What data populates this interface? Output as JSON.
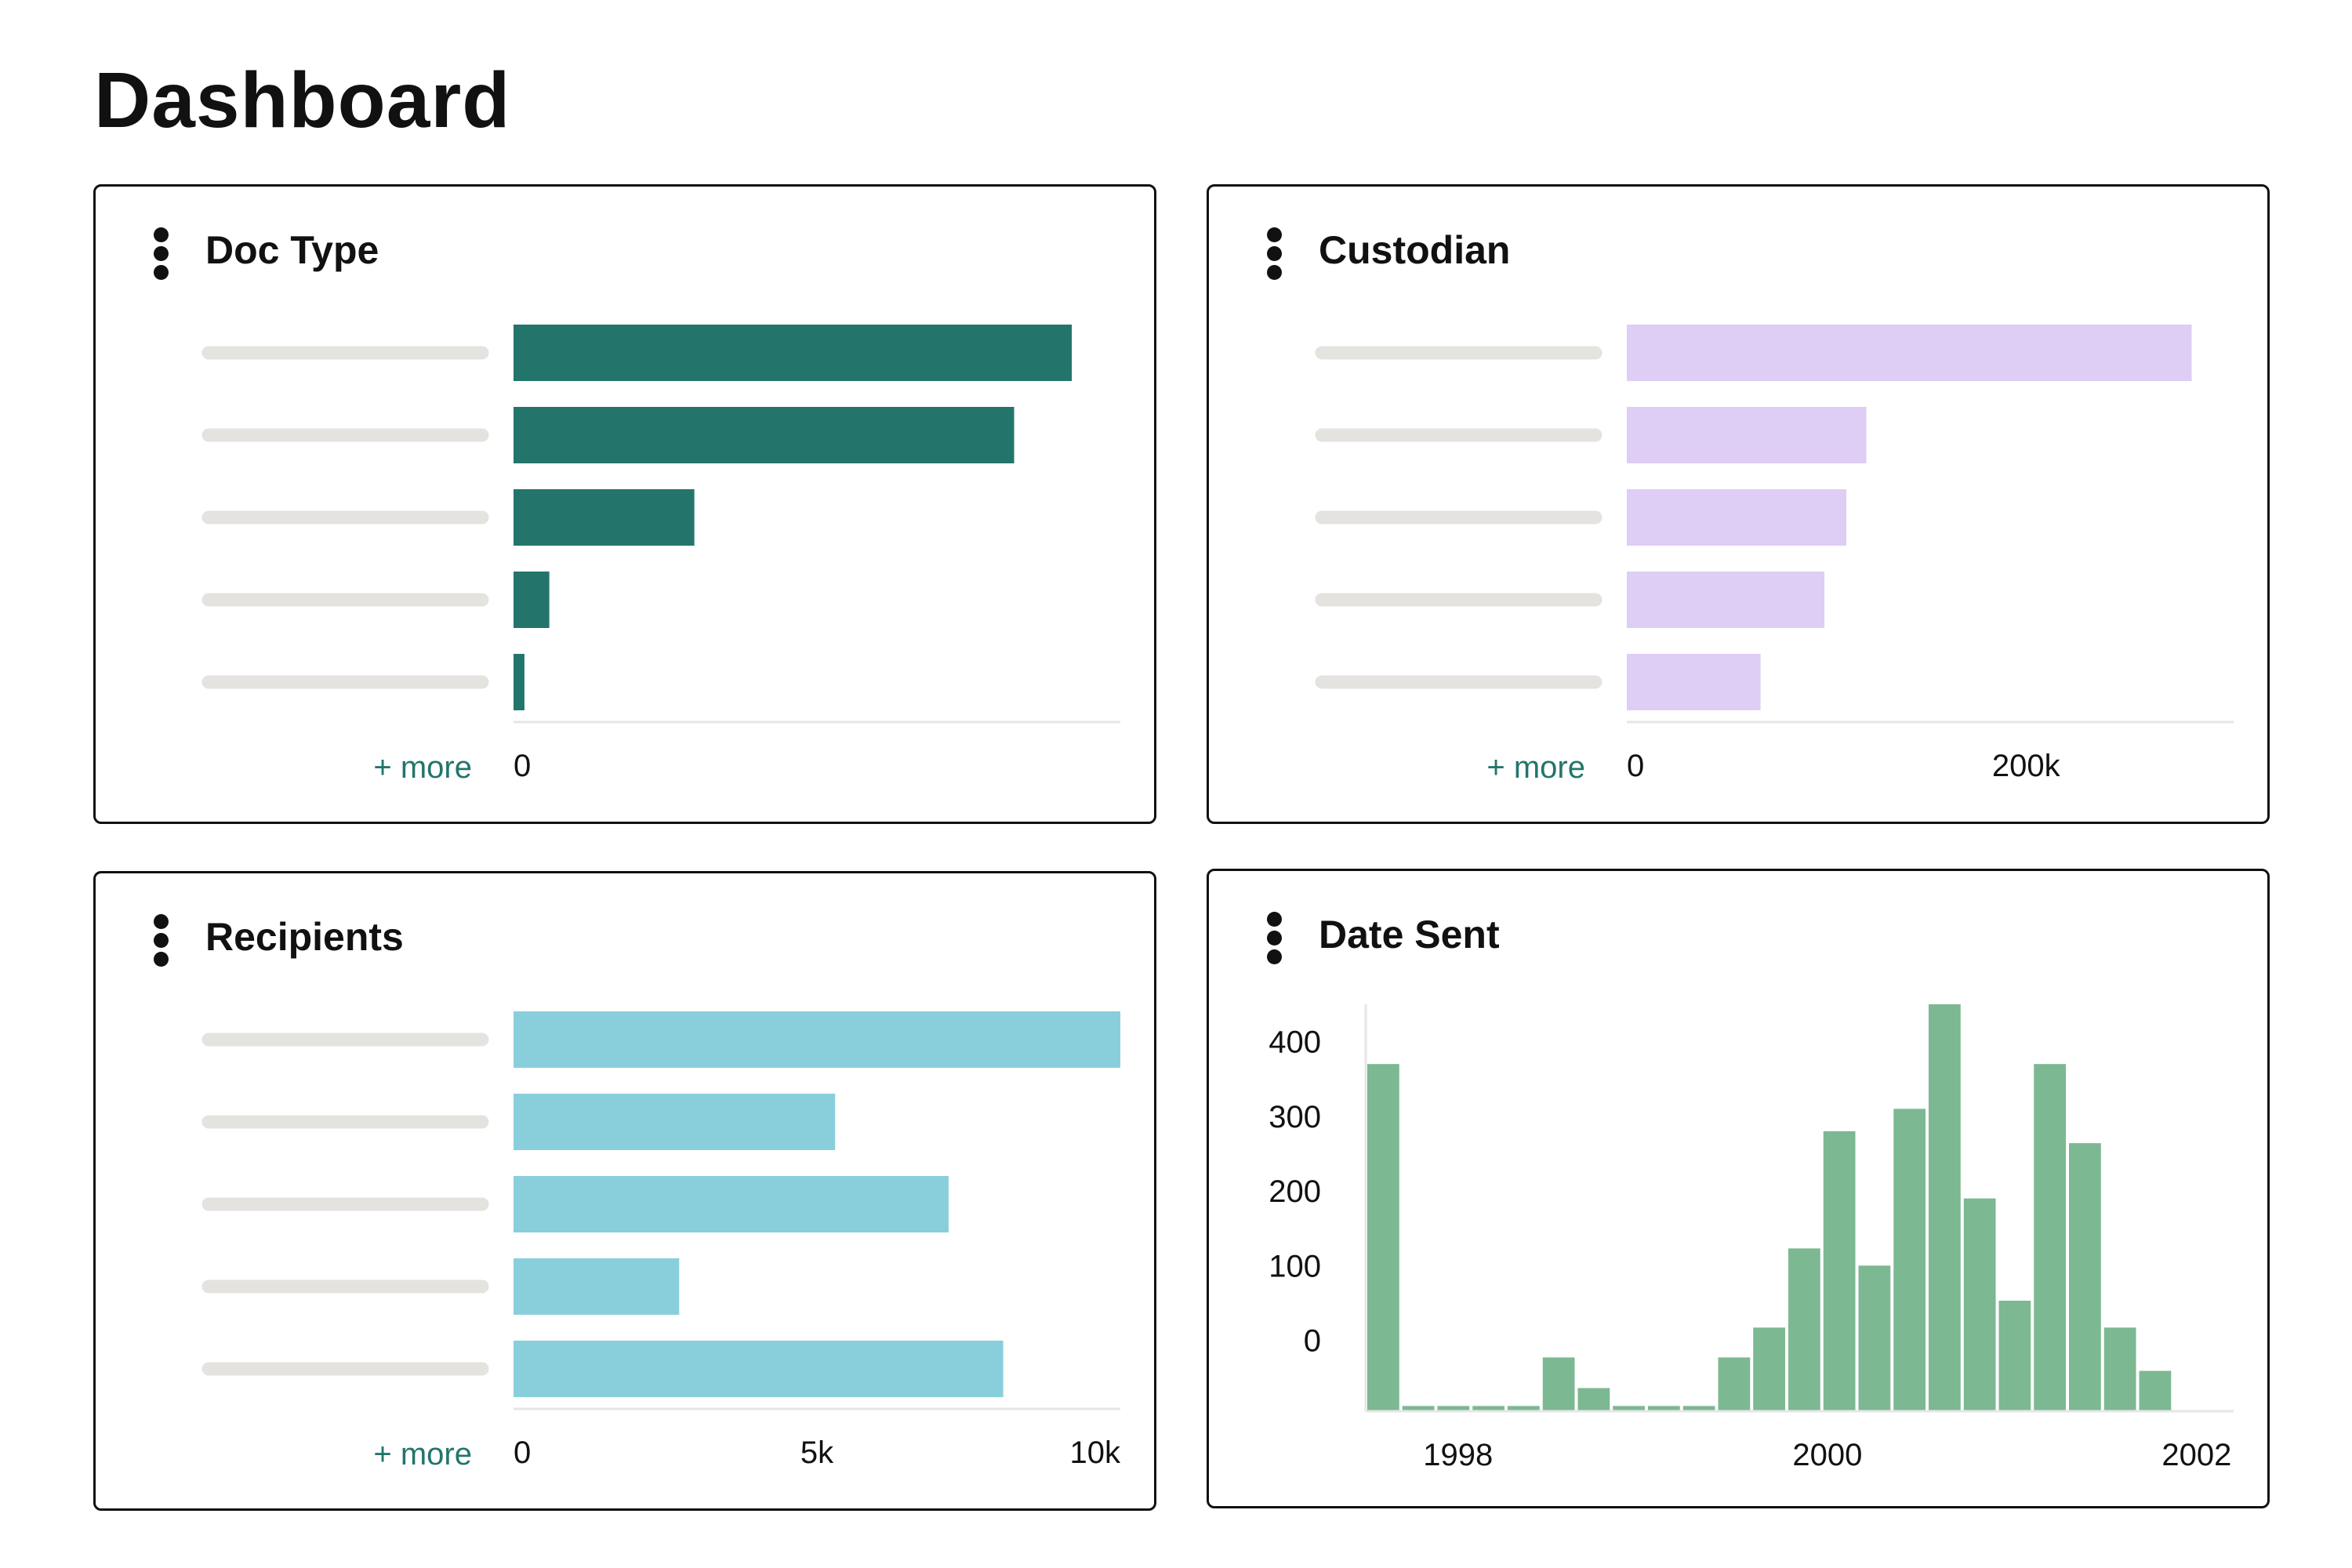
{
  "page": {
    "title": "Dashboard"
  },
  "colors": {
    "doc_type_bar": "#23756c",
    "custodian_bar": "#decdf5",
    "recipients_bar": "#89cfdb",
    "date_sent_bar": "#7cb891",
    "more_link": "#23756c",
    "placeholder": "#e4e3df",
    "axis": "#e6e6e6"
  },
  "cards": {
    "doc_type": {
      "title": "Doc Type",
      "more_label": "+ more",
      "menu_icon": "kebab-menu-icon",
      "chart_data": {
        "type": "bar",
        "orientation": "horizontal",
        "categories": [
          "",
          "",
          "",
          "",
          ""
        ],
        "values": [
          0.92,
          0.825,
          0.298,
          0.059,
          0.018
        ],
        "value_scale": "fraction of axis range (axis maximum not labeled)",
        "xlim": [
          0,
          1
        ],
        "x_ticks": [
          {
            "value": 0,
            "label": "0"
          }
        ],
        "grid": false
      }
    },
    "custodian": {
      "title": "Custodian",
      "more_label": "+ more",
      "menu_icon": "kebab-menu-icon",
      "chart_data": {
        "type": "bar",
        "orientation": "horizontal",
        "categories": [
          "",
          "",
          "",
          "",
          ""
        ],
        "values": [
          283000,
          120000,
          110000,
          99000,
          67000
        ],
        "xlim": [
          0,
          304000
        ],
        "x_ticks": [
          {
            "value": 0,
            "label": "0"
          },
          {
            "value": 200000,
            "label": "200k"
          }
        ],
        "grid": false
      }
    },
    "recipients": {
      "title": "Recipients",
      "more_label": "+ more",
      "menu_icon": "kebab-menu-icon",
      "chart_data": {
        "type": "bar",
        "orientation": "horizontal",
        "categories": [
          "",
          "",
          "",
          "",
          ""
        ],
        "values": [
          10000,
          5300,
          7170,
          2730,
          8070
        ],
        "xlim": [
          0,
          10000
        ],
        "x_ticks": [
          {
            "value": 0,
            "label": "0"
          },
          {
            "value": 5000,
            "label": "5k"
          },
          {
            "value": 10000,
            "label": "10k"
          }
        ],
        "grid": false
      }
    },
    "date_sent": {
      "title": "Date Sent",
      "menu_icon": "kebab-menu-icon",
      "chart_data": {
        "type": "histogram",
        "x_ticks": [
          {
            "value": 1998,
            "label": "1998"
          },
          {
            "value": 2000,
            "label": "2000"
          },
          {
            "value": 2002,
            "label": "2002"
          }
        ],
        "y_ticks": [
          {
            "value": 0,
            "label": "0"
          },
          {
            "value": 100,
            "label": "100"
          },
          {
            "value": 200,
            "label": "200"
          },
          {
            "value": 300,
            "label": "300"
          },
          {
            "value": 400,
            "label": "400"
          }
        ],
        "xlim": [
          1997.5,
          2002.2
        ],
        "ylim": [
          -95,
          450
        ],
        "bin_start": 1997.5,
        "bin_width": 0.19,
        "values": [
          370,
          -88,
          -88,
          -88,
          -88,
          -23,
          -64,
          -88,
          -88,
          -88,
          -23,
          17,
          123,
          280,
          100,
          310,
          450,
          190,
          53,
          370,
          264,
          17,
          -41
        ],
        "grid": false
      }
    }
  }
}
